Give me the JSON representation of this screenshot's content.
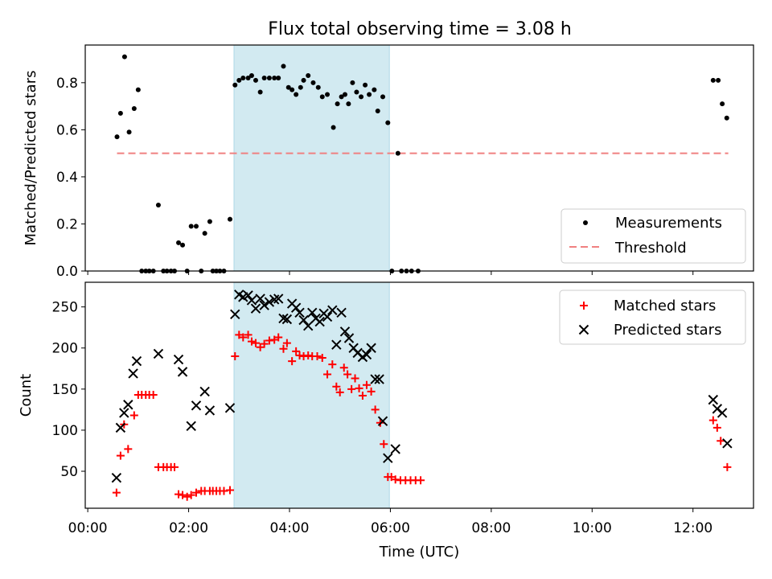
{
  "title": "Flux total observing time = 3.08 h",
  "colors": {
    "measurement": "#000000",
    "threshold": "#f08080",
    "matched": "#ff0000",
    "predicted": "#000000",
    "window": "#add8e6"
  },
  "chart_data": [
    {
      "type": "scatter",
      "ylabel": "Matched/Predicted stars",
      "xlim": [
        -0.05,
        13.2
      ],
      "ylim": [
        0,
        0.96
      ],
      "yticks": [
        "0.0",
        "0.2",
        "0.4",
        "0.6",
        "0.8"
      ],
      "legend_position": "lower-right",
      "highlight_span": [
        2.9,
        5.98
      ],
      "threshold": {
        "name": "Threshold",
        "y": 0.5,
        "x": [
          0.58,
          12.7
        ]
      },
      "series": [
        {
          "name": "Measurements",
          "points": [
            [
              0.58,
              0.57
            ],
            [
              0.65,
              0.67
            ],
            [
              0.73,
              0.91
            ],
            [
              0.82,
              0.59
            ],
            [
              0.92,
              0.69
            ],
            [
              1.0,
              0.77
            ],
            [
              1.07,
              0.0
            ],
            [
              1.15,
              0.0
            ],
            [
              1.22,
              0.0
            ],
            [
              1.3,
              0.0
            ],
            [
              1.4,
              0.28
            ],
            [
              1.5,
              0.0
            ],
            [
              1.57,
              0.0
            ],
            [
              1.65,
              0.0
            ],
            [
              1.72,
              0.0
            ],
            [
              1.8,
              0.12
            ],
            [
              1.88,
              0.11
            ],
            [
              1.97,
              0.0
            ],
            [
              2.05,
              0.19
            ],
            [
              2.15,
              0.19
            ],
            [
              2.25,
              0.0
            ],
            [
              2.32,
              0.16
            ],
            [
              2.42,
              0.21
            ],
            [
              2.48,
              0.0
            ],
            [
              2.55,
              0.0
            ],
            [
              2.62,
              0.0
            ],
            [
              2.7,
              0.0
            ],
            [
              2.82,
              0.22
            ],
            [
              2.92,
              0.79
            ],
            [
              3.0,
              0.81
            ],
            [
              3.08,
              0.82
            ],
            [
              3.18,
              0.82
            ],
            [
              3.25,
              0.83
            ],
            [
              3.33,
              0.81
            ],
            [
              3.42,
              0.76
            ],
            [
              3.5,
              0.82
            ],
            [
              3.6,
              0.82
            ],
            [
              3.7,
              0.82
            ],
            [
              3.78,
              0.82
            ],
            [
              3.88,
              0.87
            ],
            [
              3.98,
              0.78
            ],
            [
              4.05,
              0.77
            ],
            [
              4.13,
              0.75
            ],
            [
              4.22,
              0.78
            ],
            [
              4.28,
              0.81
            ],
            [
              4.37,
              0.83
            ],
            [
              4.47,
              0.8
            ],
            [
              4.57,
              0.78
            ],
            [
              4.65,
              0.74
            ],
            [
              4.75,
              0.75
            ],
            [
              4.87,
              0.61
            ],
            [
              4.95,
              0.71
            ],
            [
              5.03,
              0.74
            ],
            [
              5.1,
              0.75
            ],
            [
              5.17,
              0.71
            ],
            [
              5.25,
              0.8
            ],
            [
              5.33,
              0.76
            ],
            [
              5.42,
              0.74
            ],
            [
              5.5,
              0.79
            ],
            [
              5.58,
              0.75
            ],
            [
              5.68,
              0.77
            ],
            [
              5.75,
              0.68
            ],
            [
              5.85,
              0.74
            ],
            [
              5.95,
              0.63
            ],
            [
              6.03,
              0.0
            ],
            [
              6.15,
              0.5
            ],
            [
              6.22,
              0.0
            ],
            [
              6.32,
              0.0
            ],
            [
              6.42,
              0.0
            ],
            [
              6.55,
              0.0
            ],
            [
              12.4,
              0.81
            ],
            [
              12.5,
              0.81
            ],
            [
              12.58,
              0.71
            ],
            [
              12.67,
              0.65
            ]
          ]
        }
      ]
    },
    {
      "type": "scatter",
      "xlabel": "Time (UTC)",
      "ylabel": "Count",
      "xlim": [
        -0.05,
        13.2
      ],
      "ylim": [
        5,
        280
      ],
      "xticks": [
        [
          0,
          "00:00"
        ],
        [
          2,
          "02:00"
        ],
        [
          4,
          "04:00"
        ],
        [
          6,
          "06:00"
        ],
        [
          8,
          "08:00"
        ],
        [
          10,
          "10:00"
        ],
        [
          12,
          "12:00"
        ]
      ],
      "yticks": [
        50,
        100,
        150,
        200,
        250
      ],
      "legend_position": "upper-right",
      "highlight_span": [
        2.9,
        5.98
      ],
      "series": [
        {
          "name": "Matched stars",
          "points": [
            [
              0.57,
              24
            ],
            [
              0.65,
              69
            ],
            [
              0.72,
              107
            ],
            [
              0.8,
              77
            ],
            [
              0.92,
              118
            ],
            [
              1.0,
              143
            ],
            [
              1.07,
              143
            ],
            [
              1.15,
              143
            ],
            [
              1.22,
              143
            ],
            [
              1.3,
              143
            ],
            [
              1.4,
              55
            ],
            [
              1.5,
              55
            ],
            [
              1.57,
              55
            ],
            [
              1.65,
              55
            ],
            [
              1.72,
              55
            ],
            [
              1.8,
              22
            ],
            [
              1.88,
              21
            ],
            [
              1.97,
              19
            ],
            [
              2.05,
              21
            ],
            [
              2.15,
              24
            ],
            [
              2.25,
              26
            ],
            [
              2.32,
              26
            ],
            [
              2.42,
              26
            ],
            [
              2.48,
              26
            ],
            [
              2.55,
              26
            ],
            [
              2.62,
              26
            ],
            [
              2.7,
              26
            ],
            [
              2.82,
              27
            ],
            [
              2.92,
              190
            ],
            [
              3.0,
              216
            ],
            [
              3.08,
              213
            ],
            [
              3.18,
              216
            ],
            [
              3.25,
              208
            ],
            [
              3.33,
              206
            ],
            [
              3.42,
              201
            ],
            [
              3.5,
              205
            ],
            [
              3.6,
              209
            ],
            [
              3.7,
              210
            ],
            [
              3.78,
              213
            ],
            [
              3.88,
              199
            ],
            [
              3.95,
              206
            ],
            [
              4.05,
              184
            ],
            [
              4.13,
              196
            ],
            [
              4.2,
              191
            ],
            [
              4.28,
              190
            ],
            [
              4.37,
              191
            ],
            [
              4.45,
              190
            ],
            [
              4.55,
              190
            ],
            [
              4.65,
              188
            ],
            [
              4.75,
              168
            ],
            [
              4.85,
              180
            ],
            [
              4.93,
              153
            ],
            [
              5.0,
              146
            ],
            [
              5.08,
              176
            ],
            [
              5.15,
              168
            ],
            [
              5.23,
              150
            ],
            [
              5.3,
              163
            ],
            [
              5.38,
              151
            ],
            [
              5.45,
              142
            ],
            [
              5.53,
              155
            ],
            [
              5.62,
              147
            ],
            [
              5.7,
              125
            ],
            [
              5.8,
              109
            ],
            [
              5.87,
              83
            ],
            [
              5.95,
              43
            ],
            [
              6.02,
              43
            ],
            [
              6.1,
              40
            ],
            [
              6.2,
              39
            ],
            [
              6.3,
              39
            ],
            [
              6.4,
              39
            ],
            [
              6.5,
              39
            ],
            [
              6.6,
              39
            ],
            [
              12.4,
              112
            ],
            [
              12.48,
              103
            ],
            [
              12.55,
              87
            ],
            [
              12.68,
              55
            ]
          ]
        },
        {
          "name": "Predicted stars",
          "points": [
            [
              0.57,
              42
            ],
            [
              0.65,
              103
            ],
            [
              0.72,
              121
            ],
            [
              0.8,
              131
            ],
            [
              0.9,
              169
            ],
            [
              0.97,
              184
            ],
            [
              1.4,
              193
            ],
            [
              1.8,
              186
            ],
            [
              1.88,
              171
            ],
            [
              2.05,
              105
            ],
            [
              2.15,
              130
            ],
            [
              2.32,
              147
            ],
            [
              2.42,
              124
            ],
            [
              2.82,
              127
            ],
            [
              2.92,
              241
            ],
            [
              3.0,
              265
            ],
            [
              3.08,
              262
            ],
            [
              3.18,
              264
            ],
            [
              3.25,
              258
            ],
            [
              3.33,
              248
            ],
            [
              3.42,
              260
            ],
            [
              3.5,
              252
            ],
            [
              3.6,
              256
            ],
            [
              3.7,
              259
            ],
            [
              3.78,
              260
            ],
            [
              3.88,
              236
            ],
            [
              3.95,
              235
            ],
            [
              4.05,
              254
            ],
            [
              4.13,
              249
            ],
            [
              4.2,
              243
            ],
            [
              4.28,
              234
            ],
            [
              4.37,
              227
            ],
            [
              4.45,
              243
            ],
            [
              4.52,
              236
            ],
            [
              4.6,
              232
            ],
            [
              4.68,
              242
            ],
            [
              4.75,
              238
            ],
            [
              4.85,
              246
            ],
            [
              4.93,
              204
            ],
            [
              5.03,
              243
            ],
            [
              5.1,
              220
            ],
            [
              5.18,
              212
            ],
            [
              5.27,
              200
            ],
            [
              5.35,
              194
            ],
            [
              5.45,
              189
            ],
            [
              5.53,
              192
            ],
            [
              5.62,
              200
            ],
            [
              5.7,
              162
            ],
            [
              5.78,
              162
            ],
            [
              5.85,
              111
            ],
            [
              5.95,
              66
            ],
            [
              6.1,
              77
            ],
            [
              12.4,
              137
            ],
            [
              12.48,
              126
            ],
            [
              12.58,
              121
            ],
            [
              12.68,
              84
            ]
          ]
        }
      ]
    }
  ]
}
